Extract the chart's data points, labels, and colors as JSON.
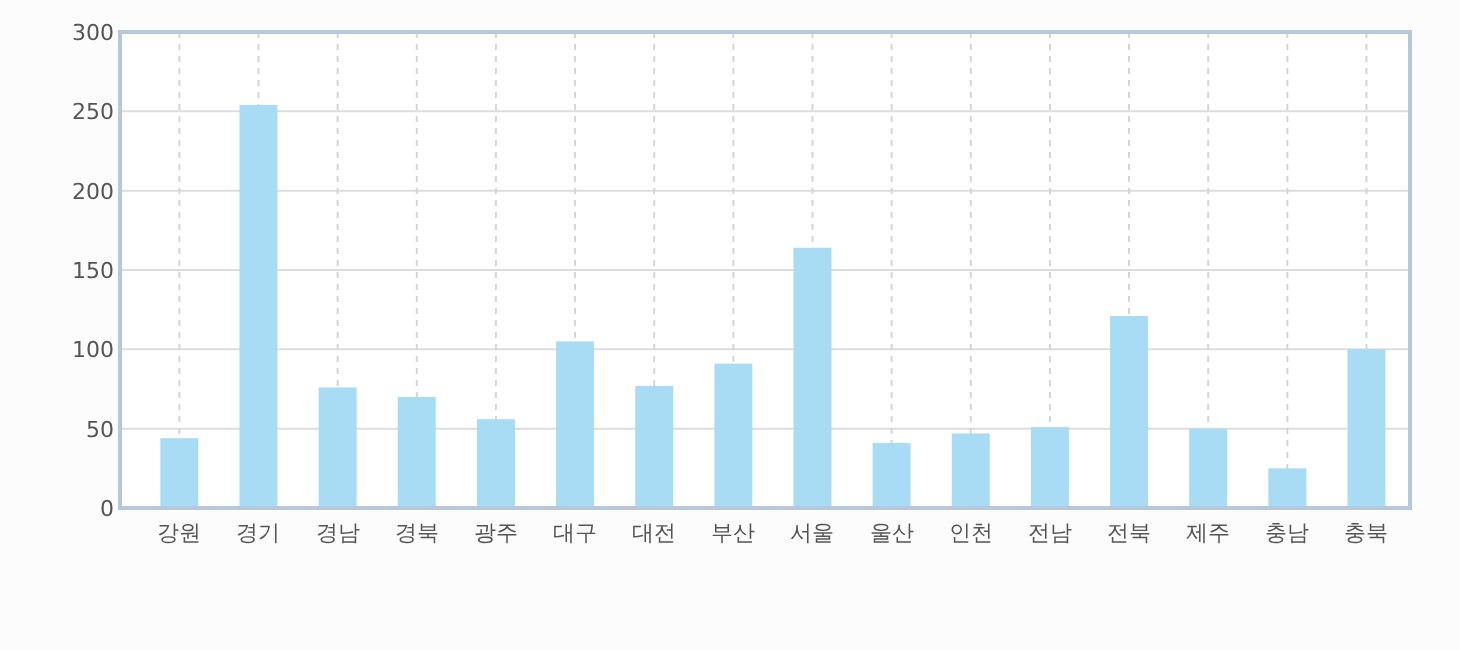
{
  "chart_data": {
    "type": "bar",
    "categories": [
      "강원",
      "경기",
      "경남",
      "경북",
      "광주",
      "대구",
      "대전",
      "부산",
      "서울",
      "울산",
      "인천",
      "전남",
      "전북",
      "제주",
      "충남",
      "충북"
    ],
    "series": [
      {
        "color": "#a8dcf5",
        "values": [
          44,
          254,
          76,
          70,
          56,
          105,
          77,
          91,
          164,
          41,
          47,
          51,
          121,
          50,
          25,
          100
        ]
      }
    ],
    "ylim": [
      0,
      300
    ],
    "yticks": [
      0,
      50,
      100,
      150,
      200,
      250,
      300
    ],
    "grid": true
  }
}
